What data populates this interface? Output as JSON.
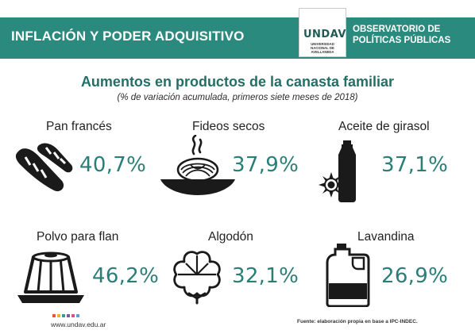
{
  "header": {
    "title": "INFLACIÓN Y PODER ADQUISITIVO",
    "logo": {
      "word": "UNDAV",
      "lines": [
        "UNIVERSIDAD",
        "NACIONAL DE",
        "AVELLANEDA"
      ]
    },
    "observatorio": [
      "OBSERVATORIO DE",
      "POLÍTICAS PÚBLICAS"
    ]
  },
  "title": "Aumentos en productos de la canasta familiar",
  "subtitle": "(% de variación acumulada, primeros siete meses de 2018)",
  "products": [
    {
      "name": "Pan francés",
      "value": "40,7%",
      "icon": "bread-icon"
    },
    {
      "name": "Fideos secos",
      "value": "37,9%",
      "icon": "pasta-icon"
    },
    {
      "name": "Aceite de girasol",
      "value": "37,1%",
      "icon": "oil-bottle-icon"
    },
    {
      "name": "Polvo para flan",
      "value": "46,2%",
      "icon": "flan-icon"
    },
    {
      "name": "Algodón",
      "value": "32,1%",
      "icon": "cotton-icon"
    },
    {
      "name": "Lavandina",
      "value": "26,9%",
      "icon": "bleach-jug-icon"
    }
  ],
  "footer": {
    "url": "www.undav.edu.ar",
    "source": "Fuente: elaboración propia en base a IPC-INDEC.",
    "dot_colors": [
      "#e2583e",
      "#f2b134",
      "#3a9c8f",
      "#7a5aa6",
      "#d94f8a",
      "#5aa0d8"
    ]
  },
  "colors": {
    "header_bg": "#2a8a7e",
    "title": "#256e66",
    "value": "#2a7e77"
  }
}
